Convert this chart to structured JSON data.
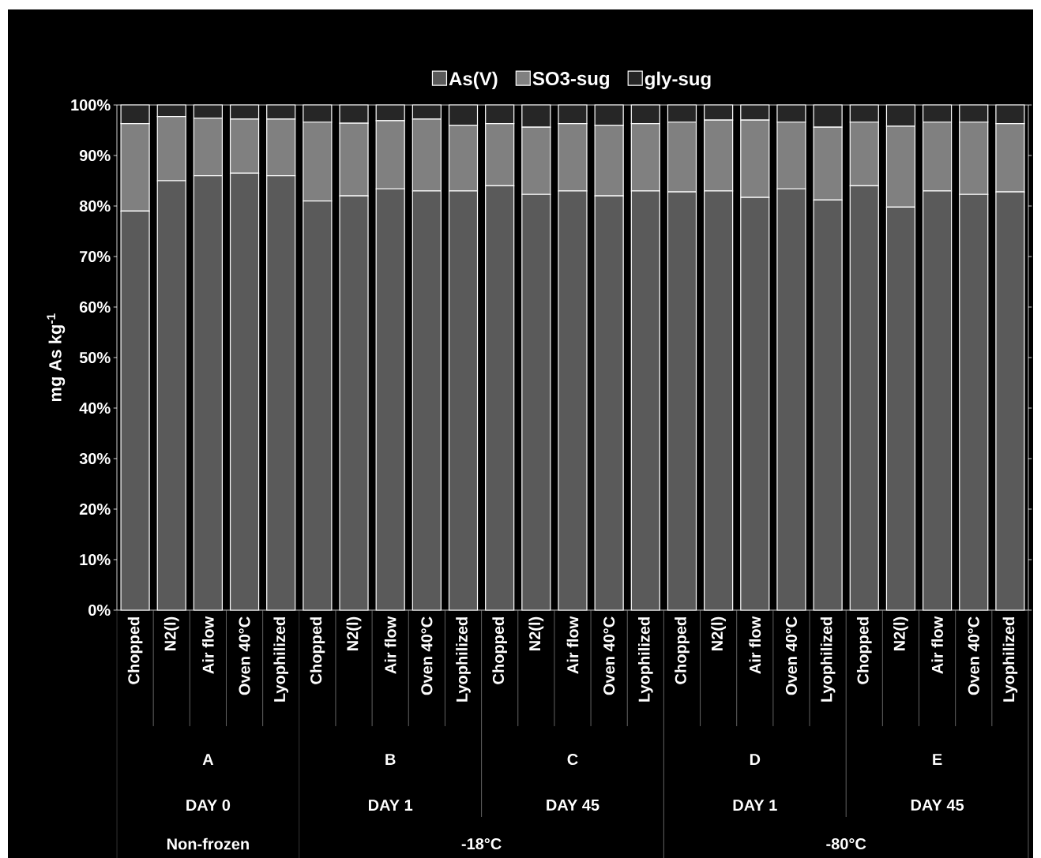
{
  "chart_data": {
    "type": "bar",
    "stacked": true,
    "ylabel": "mg As kg$^{-1}$",
    "categories": [
      "Chopped",
      "N2(l)",
      "Air flow",
      "Oven 40°C",
      "Lyophilized",
      "Chopped",
      "N2(l)",
      "Air flow",
      "Oven 40°C",
      "Lyophilized",
      "Chopped",
      "N2(l)",
      "Air flow",
      "Oven 40°C",
      "Lyophilized",
      "Chopped",
      "N2(l)",
      "Air flow",
      "Oven 40°C",
      "Lyophilized",
      "Chopped",
      "N2(l)",
      "Air flow",
      "Oven 40°C",
      "Lyophilized"
    ],
    "series": [
      {
        "name": "As(V)",
        "color": "#5a5a5a",
        "values": [
          79,
          85,
          86,
          86.5,
          86,
          81,
          82,
          83.4,
          83,
          83,
          84,
          82.3,
          83,
          82,
          83,
          82.8,
          83,
          81.7,
          83.4,
          81.2,
          84,
          79.8,
          83,
          82.3,
          82.8
        ]
      },
      {
        "name": "SO3-sug",
        "color": "#808080",
        "values": [
          17.3,
          12.7,
          11.4,
          10.7,
          11.2,
          15.6,
          14.4,
          13.5,
          14.2,
          13,
          12.3,
          13.3,
          13.3,
          14,
          13.3,
          13.8,
          14,
          15.3,
          13.2,
          14.4,
          12.6,
          16,
          13.6,
          14.3,
          13.5
        ]
      },
      {
        "name": "gly-sug",
        "color": "#262626",
        "values": [
          3.7,
          2.3,
          2.6,
          2.8,
          2.8,
          3.4,
          3.6,
          3.1,
          2.8,
          4,
          3.7,
          4.4,
          3.7,
          4,
          3.7,
          3.4,
          3,
          3,
          3.4,
          4.4,
          3.4,
          4.2,
          3.4,
          3.4,
          3.7
        ]
      }
    ],
    "ylim": [
      0,
      100
    ],
    "yticks": [
      {
        "value": 0,
        "label": "0%"
      },
      {
        "value": 10,
        "label": "10%"
      },
      {
        "value": 20,
        "label": "20%"
      },
      {
        "value": 30,
        "label": "30%"
      },
      {
        "value": 40,
        "label": "40%"
      },
      {
        "value": 50,
        "label": "50%"
      },
      {
        "value": 60,
        "label": "60%"
      },
      {
        "value": 70,
        "label": "70%"
      },
      {
        "value": 80,
        "label": "80%"
      },
      {
        "value": 90,
        "label": "90%"
      },
      {
        "value": 100,
        "label": "100%"
      }
    ],
    "legend": "top",
    "annotations": [
      "A",
      "B",
      "C",
      "D",
      "E",
      "DAY 0",
      "DAY 1",
      "DAY 45",
      "DAY 1",
      "DAY 45",
      "Non-frozen",
      "-18°C",
      "-80°C"
    ]
  }
}
